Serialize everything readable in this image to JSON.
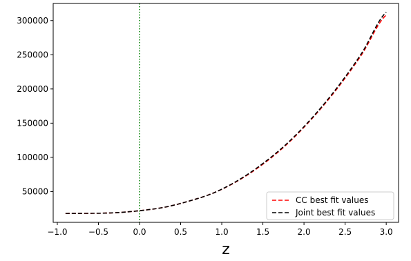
{
  "chart_data": {
    "type": "line",
    "title": "",
    "xlabel": "z",
    "ylabel": "",
    "xlim": [
      -1.05,
      3.15
    ],
    "ylim": [
      5000,
      325000
    ],
    "xticks": [
      -1.0,
      -0.5,
      0.0,
      0.5,
      1.0,
      1.5,
      2.0,
      2.5,
      3.0
    ],
    "xtick_labels": [
      "−1.0",
      "−0.5",
      "0.0",
      "0.5",
      "1.0",
      "1.5",
      "2.0",
      "2.5",
      "3.0"
    ],
    "yticks": [
      50000,
      100000,
      150000,
      200000,
      250000,
      300000
    ],
    "ytick_labels": [
      "50000",
      "100000",
      "150000",
      "200000",
      "250000",
      "300000"
    ],
    "grid": false,
    "legend_position": "bottom-right",
    "vline": {
      "x": 0.0,
      "color": "#008000",
      "style": "dotted"
    },
    "x": [
      -0.9,
      -0.6,
      -0.3,
      0.0,
      0.3,
      0.6,
      0.9,
      1.2,
      1.5,
      1.8,
      2.1,
      2.4,
      2.7,
      3.0
    ],
    "series": [
      {
        "name": "CC best fit values",
        "color": "#ff0000",
        "style": "dashed",
        "values": [
          18000,
          18200,
          19000,
          22000,
          27000,
          36000,
          48000,
          66000,
          90000,
          120000,
          157000,
          200000,
          250000,
          308000
        ]
      },
      {
        "name": "Joint best fit values",
        "color": "#000000",
        "style": "dashed",
        "values": [
          18000,
          18200,
          19000,
          22000,
          27000,
          36000,
          48000,
          66500,
          91000,
          121000,
          158000,
          201500,
          252000,
          312000
        ]
      }
    ]
  }
}
